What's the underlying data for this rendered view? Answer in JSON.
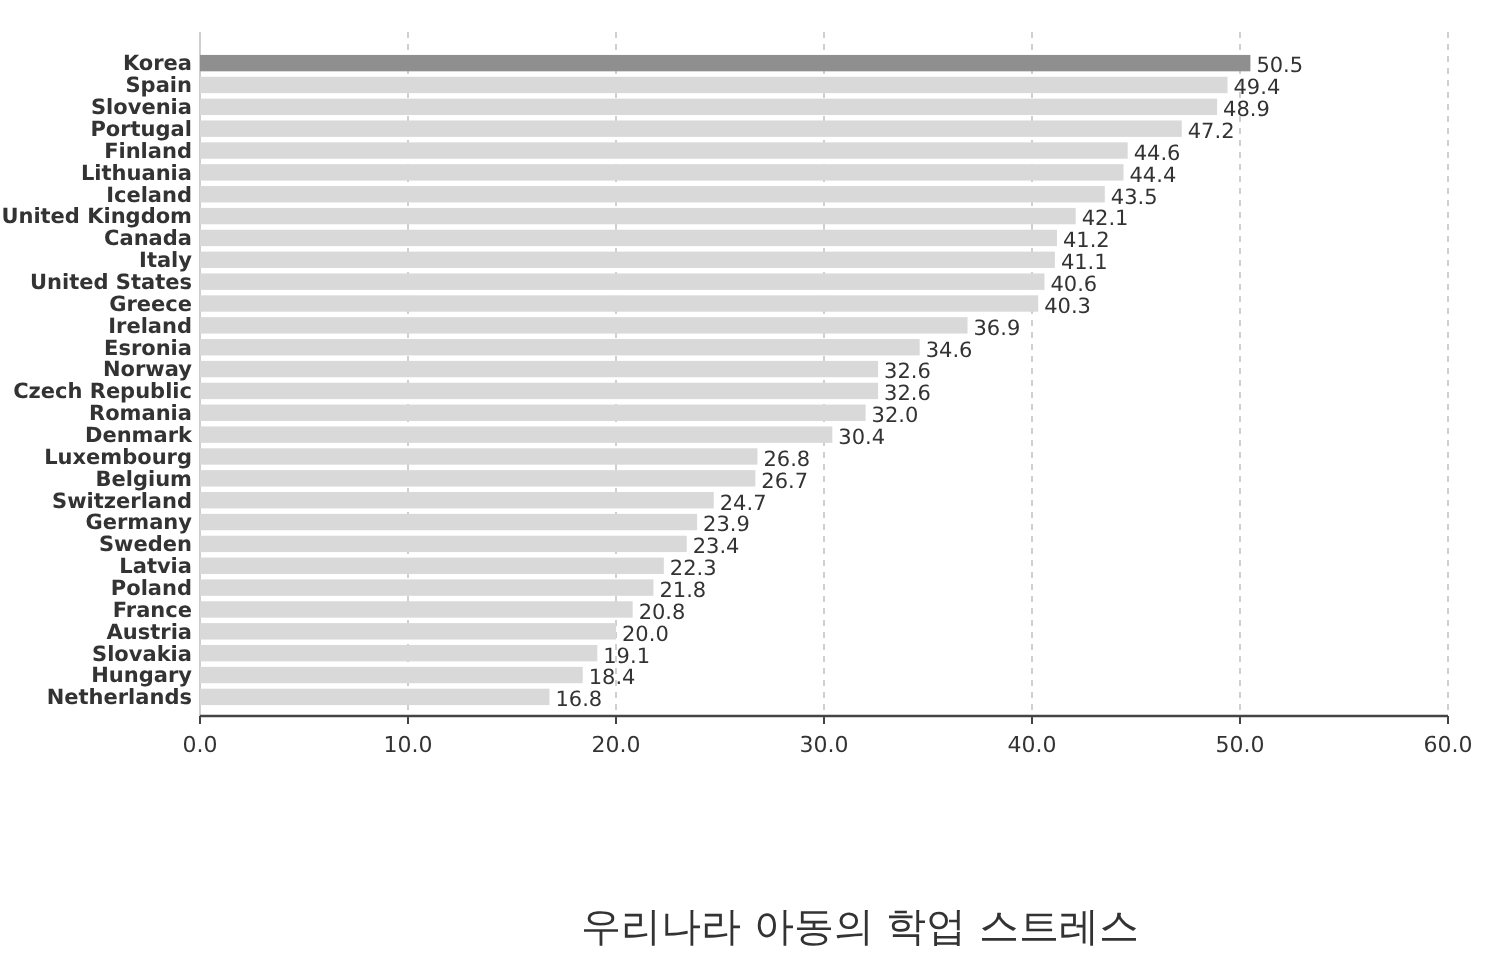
{
  "chart_data": {
    "type": "bar",
    "orientation": "horizontal",
    "title": "우리나라 아동의 학업 스트레스",
    "categories": [
      "Korea",
      "Spain",
      "Slovenia",
      "Portugal",
      "Finland",
      "Lithuania",
      "Iceland",
      "United Kingdom",
      "Canada",
      "Italy",
      "United States",
      "Greece",
      "Ireland",
      "Esronia",
      "Norway",
      "Czech Republic",
      "Romania",
      "Denmark",
      "Luxembourg",
      "Belgium",
      "Switzerland",
      "Germany",
      "Sweden",
      "Latvia",
      "Poland",
      "France",
      "Austria",
      "Slovakia",
      "Hungary",
      "Netherlands"
    ],
    "values": [
      50.5,
      49.4,
      48.9,
      47.2,
      44.6,
      44.4,
      43.5,
      42.1,
      41.2,
      41.1,
      40.6,
      40.3,
      36.9,
      34.6,
      32.6,
      32.6,
      32.0,
      30.4,
      26.8,
      26.7,
      24.7,
      23.9,
      23.4,
      22.3,
      21.8,
      20.8,
      20.0,
      19.1,
      18.4,
      16.8
    ],
    "value_labels": [
      "50.5",
      "49.4",
      "48.9",
      "47.2",
      "44.6",
      "44.4",
      "43.5",
      "42.1",
      "41.2",
      "41.1",
      "40.6",
      "40.3",
      "36.9",
      "34.6",
      "32.6",
      "32.6",
      "32.0",
      "30.4",
      "26.8",
      "26.7",
      "24.7",
      "23.9",
      "23.4",
      "22.3",
      "21.8",
      "20.8",
      "20.0",
      "19.1",
      "18.4",
      "16.8"
    ],
    "colors": [
      "#8f8f8f",
      "#d9d9d9",
      "#d9d9d9",
      "#d9d9d9",
      "#d9d9d9",
      "#d9d9d9",
      "#d9d9d9",
      "#d9d9d9",
      "#d9d9d9",
      "#d9d9d9",
      "#d9d9d9",
      "#d9d9d9",
      "#d9d9d9",
      "#d9d9d9",
      "#d9d9d9",
      "#d9d9d9",
      "#d9d9d9",
      "#d9d9d9",
      "#d9d9d9",
      "#d9d9d9",
      "#d9d9d9",
      "#d9d9d9",
      "#d9d9d9",
      "#d9d9d9",
      "#d9d9d9",
      "#d9d9d9",
      "#d9d9d9",
      "#d9d9d9",
      "#d9d9d9",
      "#d9d9d9"
    ],
    "xlim": [
      0,
      60
    ],
    "xticks": [
      {
        "value": 0,
        "label": "0.0"
      },
      {
        "value": 10,
        "label": "10.0"
      },
      {
        "value": 20,
        "label": "20.0"
      },
      {
        "value": 30,
        "label": "30.0"
      },
      {
        "value": 40,
        "label": "40.0"
      },
      {
        "value": 50,
        "label": "50.0"
      },
      {
        "value": 60,
        "label": "60.0"
      }
    ],
    "grid": "x"
  }
}
